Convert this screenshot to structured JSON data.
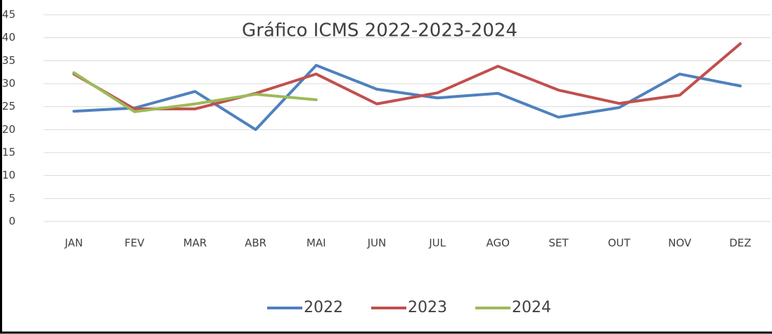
{
  "chart_data": {
    "type": "line",
    "title": "Gráfico ICMS 2022-2023-2024",
    "categories": [
      "JAN",
      "FEV",
      "MAR",
      "ABR",
      "MAI",
      "JUN",
      "JUL",
      "AGO",
      "SET",
      "OUT",
      "NOV",
      "DEZ"
    ],
    "series": [
      {
        "name": "2022",
        "color": "#4f81bd",
        "values": [
          24,
          24.7,
          28.3,
          20,
          34,
          28.8,
          26.9,
          27.9,
          22.7,
          24.8,
          32.1,
          29.5
        ]
      },
      {
        "name": "2023",
        "color": "#c0504d",
        "values": [
          32.1,
          24.5,
          24.5,
          27.9,
          32.1,
          25.6,
          28,
          33.8,
          28.6,
          25.7,
          27.5,
          38.7
        ]
      },
      {
        "name": "2024",
        "color": "#9bbb59",
        "values": [
          32.4,
          23.9,
          25.6,
          27.7,
          26.5,
          null,
          null,
          null,
          null,
          null,
          null,
          null
        ]
      }
    ],
    "ylim": [
      0,
      45
    ],
    "yticks": [
      0,
      5,
      10,
      15,
      20,
      25,
      30,
      35,
      40,
      45
    ],
    "grid": true,
    "legend": "bottom"
  }
}
